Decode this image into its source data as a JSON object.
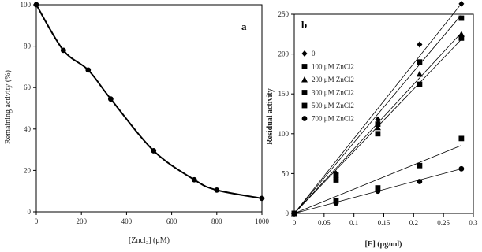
{
  "chart_data": [
    {
      "type": "line",
      "panel_label": "a",
      "xlabel": "[Zncl₂] (μM)",
      "ylabel": "Remaining activity (%)",
      "xlim": [
        0,
        1000
      ],
      "ylim": [
        0,
        100
      ],
      "x_ticks": [
        "0",
        "200",
        "400",
        "600",
        "800",
        "1000"
      ],
      "y_ticks": [
        "0",
        "20",
        "40",
        "60",
        "80",
        "100"
      ],
      "grid": false,
      "series": [
        {
          "x": [
            0,
            120,
            230,
            330,
            520,
            700,
            800,
            1000
          ],
          "y": [
            100,
            78,
            68.5,
            54.5,
            29.5,
            15.5,
            10.5,
            6.5
          ]
        }
      ]
    },
    {
      "type": "scatter",
      "panel_label": "b",
      "xlabel": "[E] (μg/ml)",
      "ylabel": "Residual activity",
      "xlim": [
        0,
        0.3
      ],
      "ylim": [
        0,
        250
      ],
      "x_ticks": [
        "0",
        "0.05",
        "0.1",
        "0.15",
        "0.2",
        "0.25",
        "0.3"
      ],
      "y_ticks": [
        "0",
        "50",
        "100",
        "150",
        "200",
        "250"
      ],
      "grid": false,
      "legend_position": "top-left",
      "series": [
        {
          "name": "0",
          "marker": "diamond",
          "x": [
            0,
            0.07,
            0.14,
            0.21,
            0.28
          ],
          "y": [
            0,
            50,
            118,
            212,
            263
          ],
          "fit_slope": 940
        },
        {
          "name": "100 μM ZnCl2",
          "marker": "square",
          "x": [
            0,
            0.07,
            0.14,
            0.21,
            0.28
          ],
          "y": [
            0,
            48,
            112,
            190,
            245
          ],
          "fit_slope": 890
        },
        {
          "name": "200 μM ZnCl2",
          "marker": "triangle",
          "x": [
            0,
            0.07,
            0.14,
            0.21,
            0.28
          ],
          "y": [
            0,
            45,
            108,
            175,
            225
          ],
          "fit_slope": 810
        },
        {
          "name": "300 μM ZnCl2",
          "marker": "square",
          "x": [
            0,
            0.07,
            0.14,
            0.21,
            0.28
          ],
          "y": [
            0,
            42,
            100,
            162,
            220
          ],
          "fit_slope": 780
        },
        {
          "name": "500 μM ZnCl2",
          "marker": "square",
          "x": [
            0,
            0.07,
            0.14,
            0.21,
            0.28
          ],
          "y": [
            0,
            16,
            32,
            60,
            94
          ],
          "fit_slope": 305
        },
        {
          "name": "700 μM ZnCl2",
          "marker": "circle",
          "x": [
            0,
            0.07,
            0.14,
            0.21,
            0.28
          ],
          "y": [
            0,
            13,
            28,
            40,
            56
          ],
          "fit_slope": 200
        }
      ]
    }
  ]
}
